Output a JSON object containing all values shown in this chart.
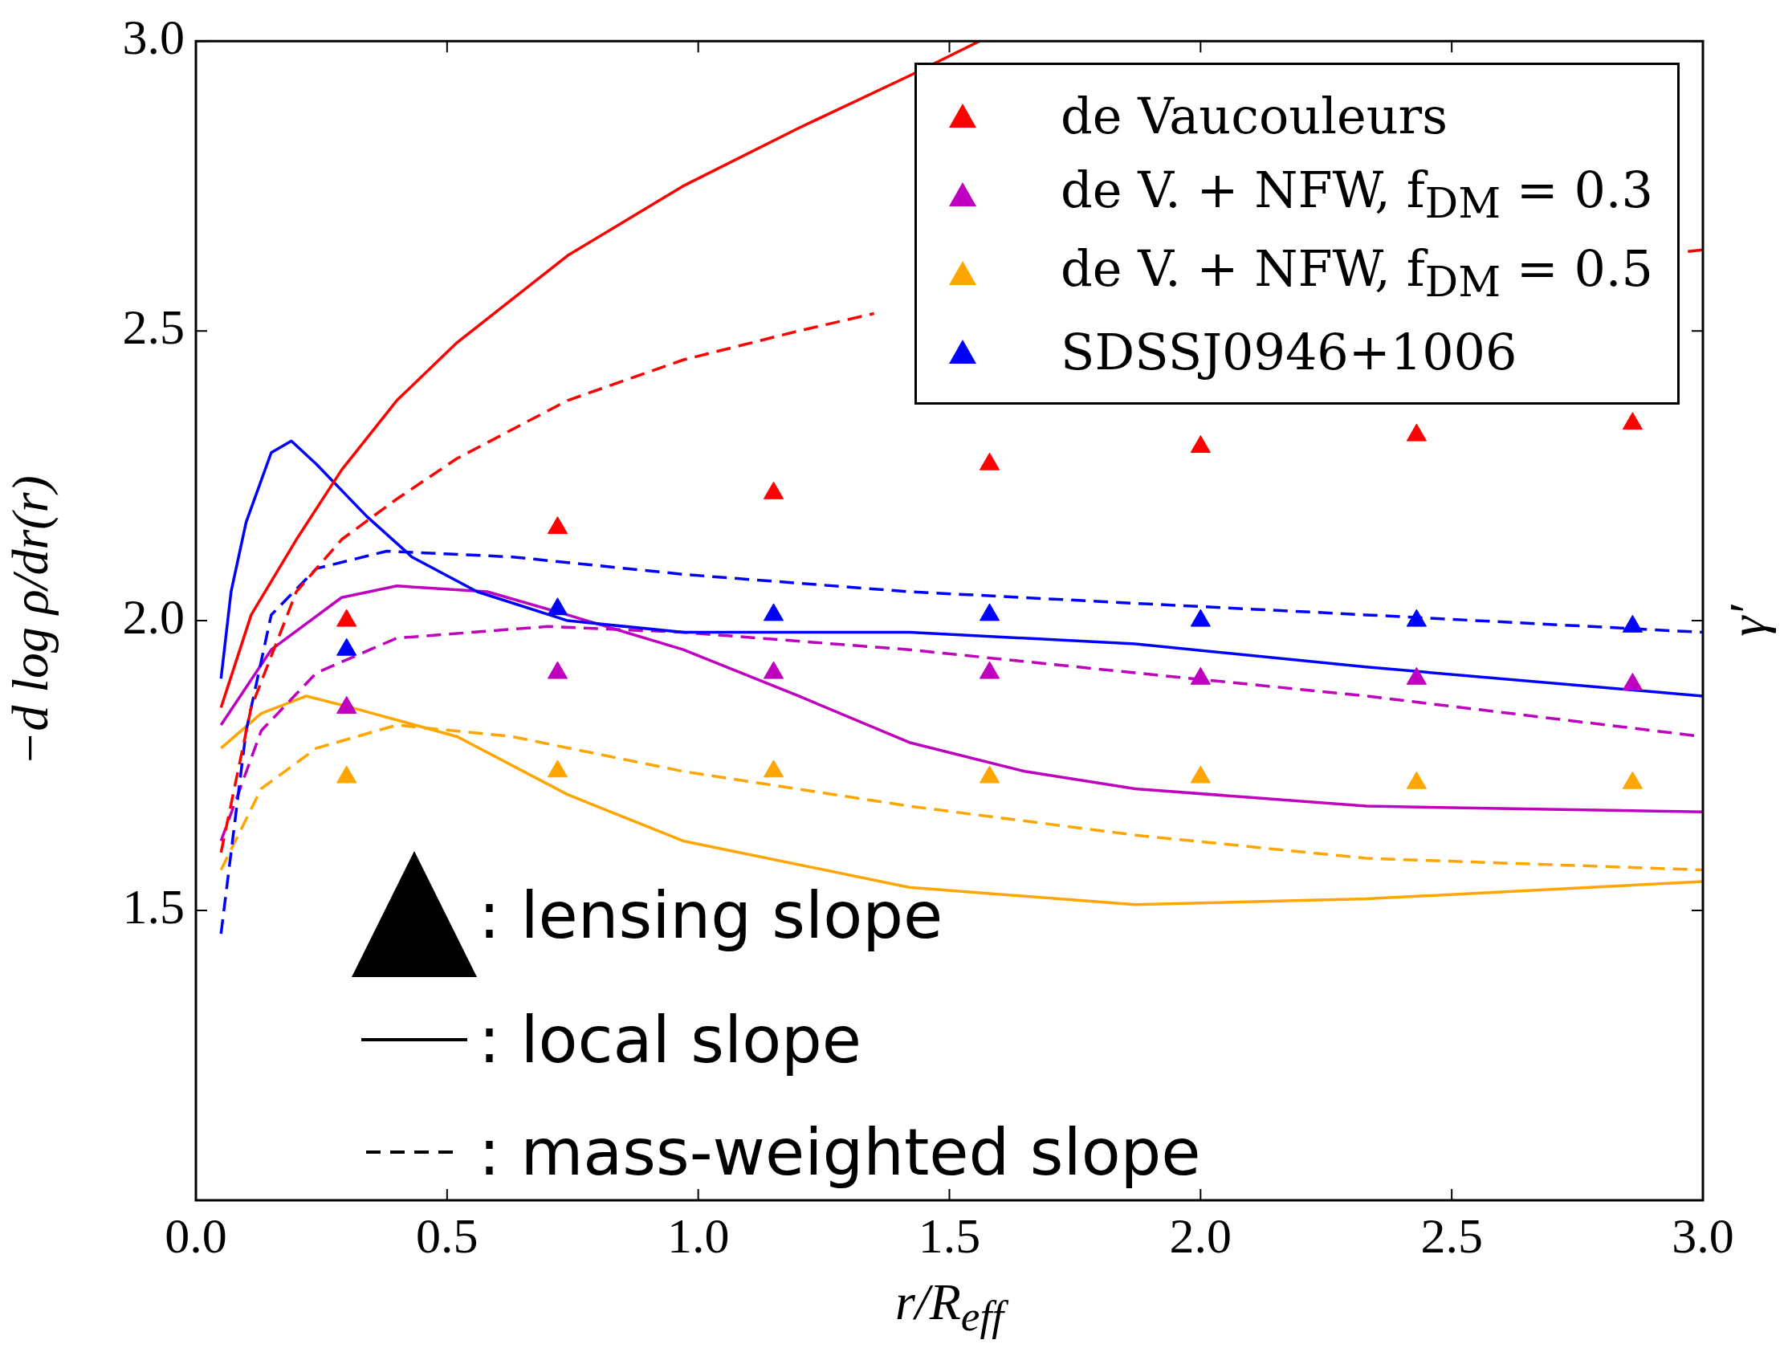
{
  "chart_data": {
    "type": "line",
    "xlabel": "r/R$_{eff}$",
    "ylabel": "−d log ρ/dr(r)",
    "y2label": "γ′",
    "xlim": [
      0,
      3
    ],
    "ylim": [
      1.0,
      3.0
    ],
    "xticks": [
      {
        "value": 0,
        "label": "0.0"
      },
      {
        "value": 0.5,
        "label": "0.5"
      },
      {
        "value": 1,
        "label": "1.0"
      },
      {
        "value": 1.5,
        "label": "1.5"
      },
      {
        "value": 2,
        "label": "2.0"
      },
      {
        "value": 2.5,
        "label": "2.5"
      },
      {
        "value": 3,
        "label": "3.0"
      }
    ],
    "yticks": [
      {
        "value": 1.5,
        "label": "1.5"
      },
      {
        "value": 2,
        "label": "2.0"
      },
      {
        "value": 2.5,
        "label": "2.5"
      },
      {
        "value": 3,
        "label": "3.0"
      }
    ],
    "grid": false,
    "legend": "top right",
    "series": [
      {
        "type": "scatter",
        "marker": "triangle",
        "name": "de Vaucouleurs",
        "color": "#ff0000",
        "x": [
          0.3,
          0.72,
          1.15,
          1.58,
          2.0,
          2.43,
          2.86
        ],
        "values": [
          2.0,
          2.16,
          2.22,
          2.27,
          2.3,
          2.32,
          2.34
        ]
      },
      {
        "type": "scatter",
        "marker": "triangle",
        "name": "de V. + NFW, f$_{DM}$ = 0.3",
        "color": "#bf00bf",
        "x": [
          0.3,
          0.72,
          1.15,
          1.58,
          2.0,
          2.43,
          2.86
        ],
        "values": [
          1.85,
          1.91,
          1.91,
          1.91,
          1.9,
          1.9,
          1.89
        ]
      },
      {
        "type": "scatter",
        "marker": "triangle",
        "name": "de V. + NFW, f$_{DM}$ = 0.5",
        "color": "#ffa500",
        "x": [
          0.3,
          0.72,
          1.15,
          1.58,
          2.0,
          2.43,
          2.86
        ],
        "values": [
          1.73,
          1.74,
          1.74,
          1.73,
          1.73,
          1.72,
          1.72
        ]
      },
      {
        "type": "scatter",
        "marker": "triangle",
        "name": "SDSSJ0946+1006",
        "color": "#0000ff",
        "x": [
          0.3,
          0.72,
          1.15,
          1.58,
          2.0,
          2.43,
          2.86
        ],
        "values": [
          1.95,
          2.02,
          2.01,
          2.01,
          2.0,
          2.0,
          1.99
        ]
      },
      {
        "type": "line",
        "line_style": "solid",
        "color": "#ff0000",
        "x": [
          0.05,
          0.11,
          0.2,
          0.29,
          0.4,
          0.52,
          0.74,
          0.97,
          1.2,
          1.42,
          1.56
        ],
        "values": [
          1.85,
          2.01,
          2.14,
          2.26,
          2.38,
          2.48,
          2.63,
          2.75,
          2.85,
          2.94,
          3.0
        ]
      },
      {
        "type": "line",
        "line_style": "dashed",
        "color": "#ff0000",
        "x": [
          0.05,
          0.11,
          0.2,
          0.29,
          0.4,
          0.52,
          0.74,
          0.97,
          1.2,
          1.35,
          2.0,
          2.97,
          3.0
        ],
        "values": [
          1.6,
          1.85,
          2.05,
          2.14,
          2.21,
          2.28,
          2.38,
          2.45,
          2.5,
          2.53,
          null,
          2.637,
          2.64
        ]
      },
      {
        "type": "line",
        "line_style": "solid",
        "color": "#0000ff",
        "x": [
          0.05,
          0.07,
          0.1,
          0.15,
          0.19,
          0.24,
          0.34,
          0.43,
          0.56,
          0.74,
          0.97,
          1.42,
          1.87,
          2.33,
          3.0
        ],
        "values": [
          1.9,
          2.05,
          2.17,
          2.29,
          2.31,
          2.27,
          2.18,
          2.11,
          2.05,
          2.0,
          1.98,
          1.98,
          1.96,
          1.92,
          1.87
        ]
      },
      {
        "type": "line",
        "line_style": "dashed",
        "color": "#0000ff",
        "x": [
          0.05,
          0.1,
          0.15,
          0.24,
          0.38,
          0.63,
          0.97,
          1.42,
          1.87,
          2.33,
          3.0
        ],
        "values": [
          1.46,
          1.81,
          2.01,
          2.09,
          2.12,
          2.11,
          2.08,
          2.05,
          2.03,
          2.01,
          1.98
        ]
      },
      {
        "type": "line",
        "line_style": "solid",
        "color": "#bf00bf",
        "x": [
          0.05,
          0.15,
          0.29,
          0.4,
          0.58,
          0.74,
          0.97,
          1.2,
          1.42,
          1.65,
          1.87,
          2.33,
          3.0
        ],
        "values": [
          1.82,
          1.95,
          2.04,
          2.06,
          2.05,
          2.01,
          1.95,
          1.87,
          1.79,
          1.74,
          1.71,
          1.68,
          1.67
        ]
      },
      {
        "type": "line",
        "line_style": "dashed",
        "color": "#bf00bf",
        "x": [
          0.05,
          0.13,
          0.24,
          0.4,
          0.7,
          0.97,
          1.42,
          1.87,
          2.33,
          3.0
        ],
        "values": [
          1.62,
          1.81,
          1.91,
          1.97,
          1.99,
          1.98,
          1.95,
          1.91,
          1.87,
          1.8
        ]
      },
      {
        "type": "line",
        "line_style": "solid",
        "color": "#ffa500",
        "x": [
          0.05,
          0.13,
          0.22,
          0.31,
          0.52,
          0.74,
          0.97,
          1.42,
          1.87,
          2.33,
          3.0
        ],
        "values": [
          1.78,
          1.84,
          1.87,
          1.85,
          1.8,
          1.7,
          1.62,
          1.54,
          1.51,
          1.52,
          1.55
        ]
      },
      {
        "type": "line",
        "line_style": "dashed",
        "color": "#ffa500",
        "x": [
          0.05,
          0.13,
          0.24,
          0.4,
          0.63,
          0.97,
          1.42,
          1.87,
          2.33,
          3.0
        ],
        "values": [
          1.57,
          1.71,
          1.78,
          1.82,
          1.8,
          1.74,
          1.68,
          1.63,
          1.59,
          1.57
        ]
      }
    ],
    "annotations": [
      ": lensing slope",
      ": local slope",
      ": mass-weighted slope"
    ]
  }
}
